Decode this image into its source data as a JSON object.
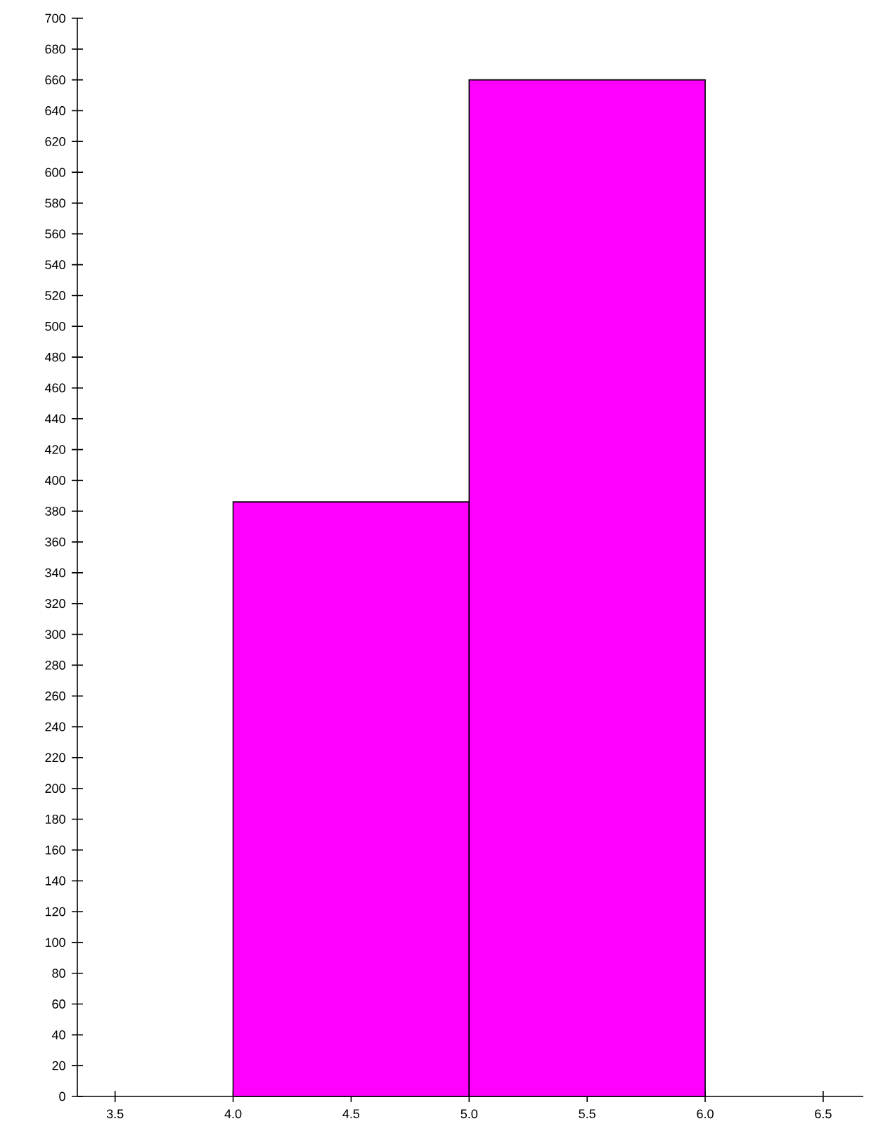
{
  "chart_data": {
    "type": "histogram",
    "bins": [
      4,
      5,
      6
    ],
    "values": [
      386,
      660
    ],
    "color": "#ff00ff",
    "xlim": [
      3.34,
      6.67
    ],
    "xticks": [
      {
        "value": 3.5,
        "label": "3.5"
      },
      {
        "value": 4,
        "label": "4.0"
      },
      {
        "value": 4.5,
        "label": "4.5"
      },
      {
        "value": 5,
        "label": "5.0"
      },
      {
        "value": 5.5,
        "label": "5.5"
      },
      {
        "value": 6,
        "label": "6.0"
      },
      {
        "value": 6.5,
        "label": "6.5"
      }
    ],
    "ylim": [
      0,
      700
    ],
    "yticks": [
      0,
      20,
      40,
      60,
      80,
      100,
      120,
      140,
      160,
      180,
      200,
      220,
      240,
      260,
      280,
      300,
      320,
      340,
      360,
      380,
      400,
      420,
      440,
      460,
      480,
      500,
      520,
      540,
      560,
      580,
      600,
      620,
      640,
      660,
      680,
      700
    ],
    "grid": false
  }
}
